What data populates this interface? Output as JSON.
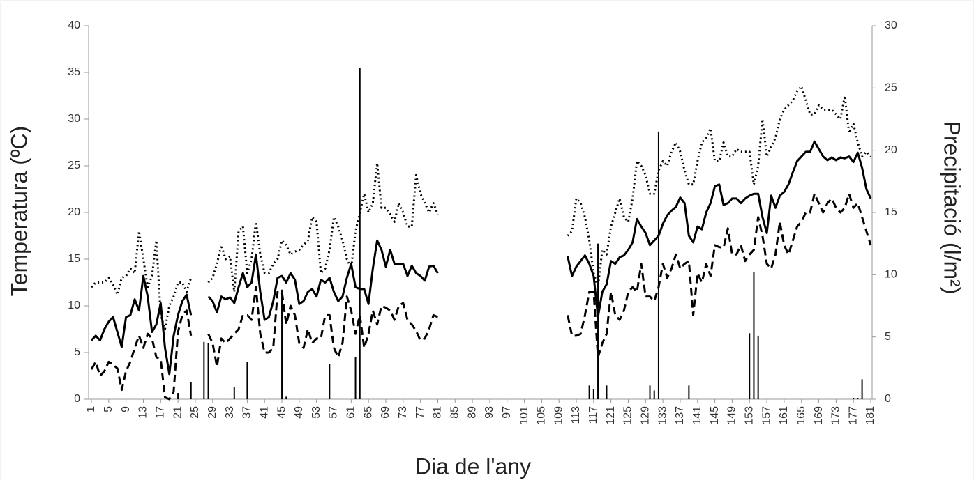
{
  "chart_data": {
    "type": "line",
    "xlabel": "Dia de l'any",
    "ylabel": "Temperatura (ºC)",
    "y2label": "Precipitació (l/m²)",
    "xlim": [
      1,
      181
    ],
    "ylim": [
      0,
      40
    ],
    "y2lim": [
      0,
      30
    ],
    "xticks": [
      1,
      5,
      9,
      13,
      17,
      21,
      25,
      29,
      33,
      37,
      41,
      45,
      49,
      53,
      57,
      61,
      65,
      69,
      73,
      77,
      81,
      85,
      89,
      93,
      97,
      101,
      105,
      109,
      113,
      117,
      121,
      125,
      129,
      133,
      137,
      141,
      145,
      149,
      153,
      157,
      161,
      165,
      169,
      173,
      177,
      181
    ],
    "yticks": [
      0,
      5,
      10,
      15,
      20,
      25,
      30,
      35,
      40
    ],
    "y2ticks": [
      0,
      5,
      10,
      15,
      20,
      25,
      30
    ],
    "x": [
      1,
      2,
      3,
      4,
      5,
      6,
      7,
      8,
      9,
      10,
      11,
      12,
      13,
      14,
      15,
      16,
      17,
      18,
      19,
      20,
      21,
      22,
      23,
      24,
      25,
      26,
      27,
      28,
      29,
      30,
      31,
      32,
      33,
      34,
      35,
      36,
      37,
      38,
      39,
      40,
      41,
      42,
      43,
      44,
      45,
      46,
      47,
      48,
      49,
      50,
      51,
      52,
      53,
      54,
      55,
      56,
      57,
      58,
      59,
      60,
      61,
      62,
      63,
      64,
      65,
      66,
      67,
      68,
      69,
      70,
      71,
      72,
      73,
      74,
      75,
      76,
      77,
      78,
      79,
      80,
      81,
      82,
      83,
      84,
      85,
      86,
      87,
      88,
      89,
      90,
      91,
      92,
      93,
      94,
      95,
      96,
      97,
      98,
      99,
      100,
      101,
      102,
      103,
      104,
      105,
      106,
      107,
      108,
      109,
      110,
      111,
      112,
      113,
      114,
      115,
      116,
      117,
      118,
      119,
      120,
      121,
      122,
      123,
      124,
      125,
      126,
      127,
      128,
      129,
      130,
      131,
      132,
      133,
      134,
      135,
      136,
      137,
      138,
      139,
      140,
      141,
      142,
      143,
      144,
      145,
      146,
      147,
      148,
      149,
      150,
      151,
      152,
      153,
      154,
      155,
      156,
      157,
      158,
      159,
      160,
      161,
      162,
      163,
      164,
      165,
      166,
      167,
      168,
      169,
      170,
      171,
      172,
      173,
      174,
      175,
      176,
      177,
      178,
      179,
      180,
      181
    ],
    "series": [
      {
        "color": "#000000",
        "dash": "dotted",
        "values": [
          12,
          12.5,
          12.5,
          12.5,
          13,
          12.3,
          11.2,
          13,
          13.2,
          14,
          13.5,
          18,
          15,
          12,
          13.2,
          17,
          9,
          7.5,
          10,
          11,
          12.5,
          12.5,
          11.5,
          13,
          null,
          null,
          null,
          12.5,
          13,
          14.5,
          16.5,
          15,
          15.3,
          11.5,
          18,
          18.5,
          13.5,
          15,
          19,
          15.5,
          13.5,
          13.5,
          14.5,
          15,
          17,
          16.5,
          15.5,
          15.8,
          16,
          16.5,
          17,
          19.5,
          19,
          13.5,
          14,
          16,
          19.5,
          18.5,
          17,
          15,
          14,
          18,
          20,
          22,
          20,
          21,
          25.3,
          20.5,
          20.5,
          19.8,
          19,
          21,
          20,
          18.5,
          18.5,
          24,
          22,
          21,
          20,
          21,
          19.8,
          null,
          null,
          null,
          null,
          null,
          null,
          null,
          null,
          null,
          null,
          null,
          null,
          null,
          null,
          null,
          null,
          null,
          null,
          null,
          null,
          null,
          null,
          null,
          null,
          null,
          null,
          null,
          null,
          null,
          17.5,
          18,
          21.5,
          21,
          19.5,
          17,
          13.5,
          12,
          16,
          15.5,
          18.5,
          20,
          21.5,
          19.5,
          19,
          21.5,
          25.5,
          25,
          24,
          22,
          22,
          24.5,
          25.5,
          25,
          26.5,
          27.5,
          26.5,
          24.5,
          23,
          23,
          25.5,
          27.5,
          28,
          29,
          25.5,
          25.5,
          27.5,
          26,
          26,
          26.8,
          26.5,
          26.5,
          26.5,
          23,
          25,
          30,
          26,
          27,
          28,
          30,
          31,
          31.5,
          32,
          33,
          33.5,
          32,
          30.5,
          30.5,
          31.5,
          31,
          31,
          31,
          30.5,
          30,
          32.5,
          28.5,
          29.5,
          27.5,
          26,
          26.5,
          26
        ]
      },
      {
        "color": "#000000",
        "dash": "solid",
        "values": [
          6.3,
          6.8,
          6.3,
          7.5,
          8.3,
          8.8,
          7.2,
          5.6,
          8.8,
          9,
          10.7,
          9.5,
          13.2,
          11,
          7.2,
          8,
          10.3,
          5.5,
          2.7,
          6.8,
          9,
          10.5,
          11.2,
          9,
          null,
          null,
          null,
          11,
          10.5,
          9.3,
          11,
          10.7,
          10.9,
          10.3,
          12,
          13.5,
          12,
          12.5,
          15.5,
          11.5,
          8.5,
          8.8,
          10.5,
          13,
          13.2,
          12.5,
          13.5,
          12.8,
          10.2,
          10.5,
          11.5,
          11.8,
          11,
          12.8,
          12.5,
          13,
          11.5,
          10.5,
          11,
          13,
          14.5,
          12,
          11.8,
          11.8,
          10.2,
          14,
          17,
          16,
          14.2,
          16,
          14.5,
          14.5,
          14.5,
          13.2,
          14.3,
          13.5,
          13.2,
          12.7,
          14.2,
          14.3,
          13.5,
          null,
          null,
          null,
          null,
          null,
          null,
          null,
          null,
          null,
          null,
          null,
          null,
          null,
          null,
          null,
          null,
          null,
          null,
          null,
          null,
          null,
          null,
          null,
          null,
          null,
          null,
          null,
          null,
          null,
          15.3,
          13.2,
          14.2,
          14.8,
          15.4,
          14.5,
          13.2,
          8.8,
          11.5,
          12.3,
          14.8,
          14.5,
          15.2,
          15.4,
          16,
          16.8,
          19.3,
          18.5,
          17.8,
          16.5,
          17,
          17.5,
          18.8,
          19.7,
          20.2,
          20.6,
          21.6,
          21,
          17.5,
          16.8,
          18.5,
          18.2,
          20,
          21,
          22.8,
          23,
          20.8,
          21,
          21.5,
          21.5,
          21,
          21.5,
          21.8,
          22,
          22,
          19.5,
          17.8,
          21.8,
          20.5,
          21.8,
          22.2,
          23,
          24.3,
          25.5,
          26,
          26.5,
          26.5,
          27.6,
          26.8,
          26,
          25.6,
          25.9,
          25.6,
          25.9,
          25.8,
          26,
          25.4,
          26.4,
          24.8,
          22.5,
          21.5
        ]
      },
      {
        "color": "#000000",
        "dash": "dashed",
        "values": [
          3.2,
          4,
          2.5,
          3,
          4,
          3.7,
          3.3,
          1,
          3,
          4,
          5.5,
          6.8,
          5.5,
          7,
          6.5,
          4.5,
          4.3,
          0.2,
          0,
          0.8,
          7.2,
          9,
          9.5,
          6.8,
          null,
          null,
          null,
          7,
          6,
          3.5,
          6.5,
          6,
          6.5,
          7,
          7.5,
          9,
          9,
          8.5,
          12,
          7,
          5,
          5,
          5.5,
          11.5,
          11.5,
          8,
          10,
          9,
          6,
          5.5,
          7.5,
          6,
          6.5,
          6.5,
          9,
          9,
          5.5,
          4.5,
          6,
          11,
          9.5,
          7,
          9,
          5.5,
          7,
          9.5,
          8,
          10,
          9.8,
          9.5,
          8.5,
          10,
          10.3,
          8.5,
          8,
          7.3,
          6.3,
          6.5,
          7.5,
          9,
          8.8,
          null,
          null,
          null,
          null,
          null,
          null,
          null,
          null,
          null,
          null,
          null,
          null,
          null,
          null,
          null,
          null,
          null,
          null,
          null,
          null,
          null,
          null,
          null,
          null,
          null,
          null,
          null,
          null,
          null,
          9,
          6.8,
          6.8,
          7,
          9,
          11.5,
          11.5,
          4.5,
          6,
          7,
          11.5,
          9,
          8.5,
          9.5,
          11.5,
          12,
          11.5,
          14.5,
          11,
          11,
          10.5,
          12,
          14.5,
          13,
          14,
          15.5,
          14,
          14.5,
          14.8,
          9,
          13.5,
          12.5,
          14.5,
          13.2,
          16.5,
          16.3,
          16.2,
          18.3,
          15.5,
          15.5,
          16.5,
          14.8,
          15.5,
          16,
          19.5,
          17.5,
          14.5,
          14,
          15.5,
          19,
          16.5,
          15.5,
          17,
          18.5,
          19,
          20,
          20,
          22,
          21,
          20,
          21,
          21.5,
          20.5,
          20,
          20.5,
          22,
          20.5,
          21,
          19.5,
          18,
          16.5
        ]
      },
      {
        "type": "bar",
        "axis": "y2",
        "color": "#000000",
        "x": [
          21,
          24,
          27,
          28,
          34,
          37,
          45,
          46,
          56,
          62,
          63,
          116,
          117,
          118,
          120,
          130,
          131,
          132,
          139,
          153,
          154,
          155,
          177,
          178,
          179
        ],
        "values": [
          0.5,
          1.4,
          4.6,
          4.5,
          1,
          3,
          8.8,
          0.2,
          2.8,
          3.4,
          26.6,
          1.1,
          0.8,
          12.5,
          1.1,
          1.1,
          0.7,
          21.5,
          1.1,
          5.3,
          10.2,
          5.1,
          0.1,
          0.1,
          1.6
        ]
      }
    ]
  }
}
